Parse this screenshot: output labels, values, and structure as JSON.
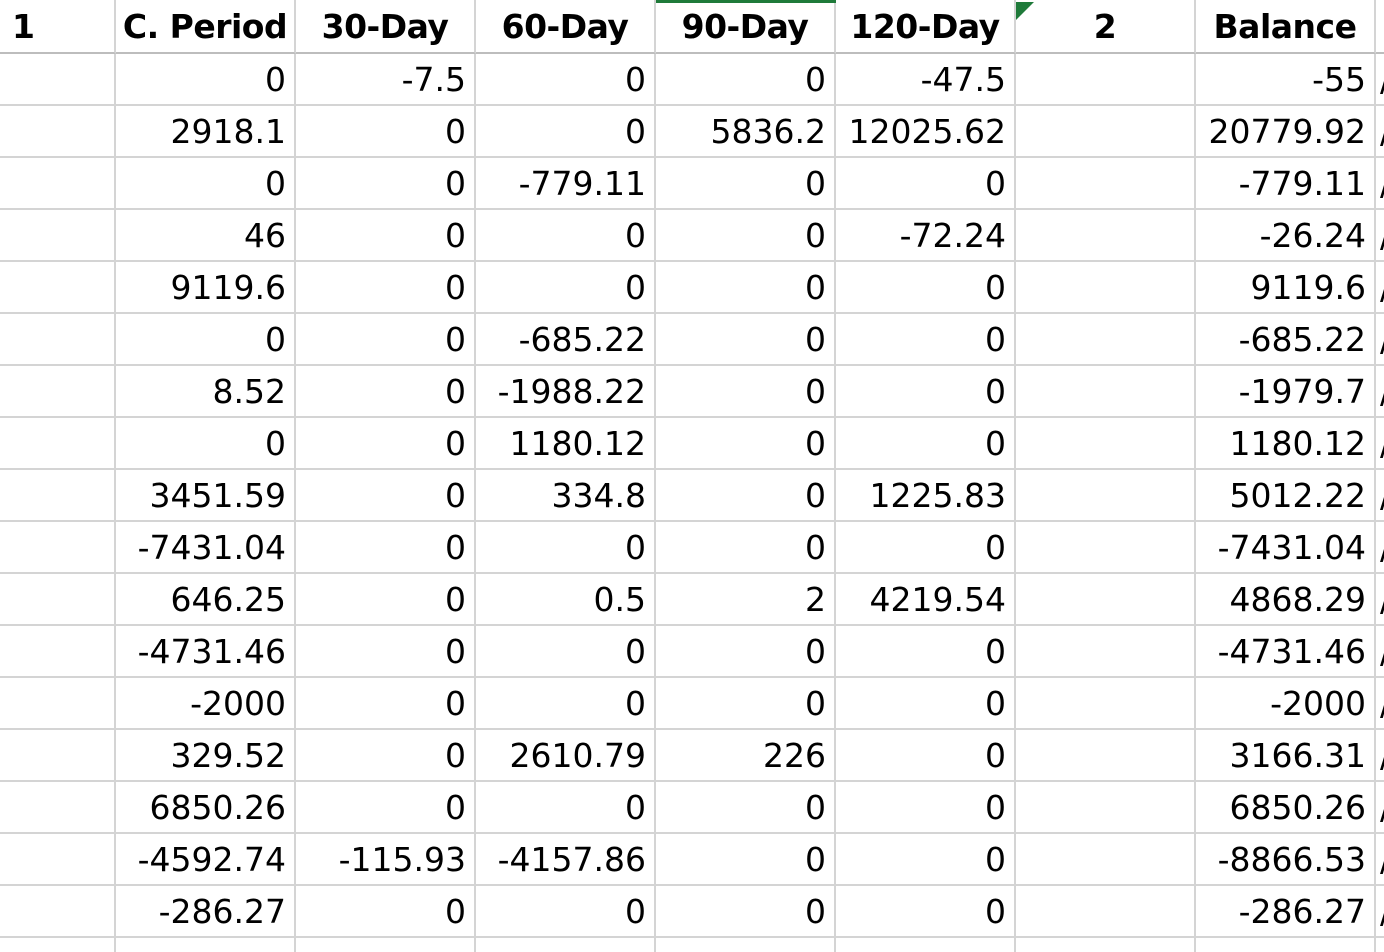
{
  "sheet": {
    "headers": [
      "1",
      "C. Period",
      "30-Day",
      "60-Day",
      "90-Day",
      "120-Day",
      "2",
      "Balance",
      ""
    ],
    "rows": [
      [
        "",
        "0",
        "-7.5",
        "0",
        "0",
        "-47.5",
        "",
        "-55",
        "/"
      ],
      [
        "",
        "2918.1",
        "0",
        "0",
        "5836.2",
        "12025.62",
        "",
        "20779.92",
        "/"
      ],
      [
        "",
        "0",
        "0",
        "-779.11",
        "0",
        "0",
        "",
        "-779.11",
        "/"
      ],
      [
        "",
        "46",
        "0",
        "0",
        "0",
        "-72.24",
        "",
        "-26.24",
        "/"
      ],
      [
        "",
        "9119.6",
        "0",
        "0",
        "0",
        "0",
        "",
        "9119.6",
        "/"
      ],
      [
        "",
        "0",
        "0",
        "-685.22",
        "0",
        "0",
        "",
        "-685.22",
        "/"
      ],
      [
        "",
        "8.52",
        "0",
        "-1988.22",
        "0",
        "0",
        "",
        "-1979.7",
        "/"
      ],
      [
        "",
        "0",
        "0",
        "1180.12",
        "0",
        "0",
        "",
        "1180.12",
        "/"
      ],
      [
        "",
        "3451.59",
        "0",
        "334.8",
        "0",
        "1225.83",
        "",
        "5012.22",
        "/"
      ],
      [
        "",
        "-7431.04",
        "0",
        "0",
        "0",
        "0",
        "",
        "-7431.04",
        "/"
      ],
      [
        "",
        "646.25",
        "0",
        "0.5",
        "2",
        "4219.54",
        "",
        "4868.29",
        "/"
      ],
      [
        "",
        "-4731.46",
        "0",
        "0",
        "0",
        "0",
        "",
        "-4731.46",
        "/"
      ],
      [
        "",
        "-2000",
        "0",
        "0",
        "0",
        "0",
        "",
        "-2000",
        "/"
      ],
      [
        "",
        "329.52",
        "0",
        "2610.79",
        "226",
        "0",
        "",
        "3166.31",
        "/"
      ],
      [
        "",
        "6850.26",
        "0",
        "0",
        "0",
        "0",
        "",
        "6850.26",
        "/"
      ],
      [
        "",
        "-4592.74",
        "-115.93",
        "-4157.86",
        "0",
        "0",
        "",
        "-8866.53",
        "/"
      ],
      [
        "",
        "-286.27",
        "0",
        "0",
        "0",
        "0",
        "",
        "-286.27",
        "/"
      ],
      [
        "",
        "",
        "",
        "",
        "",
        "",
        "",
        "",
        ""
      ]
    ]
  },
  "colors": {
    "gridline": "#d4d4d4",
    "selection_accent": "#1f7a3a",
    "text": "#000000"
  }
}
